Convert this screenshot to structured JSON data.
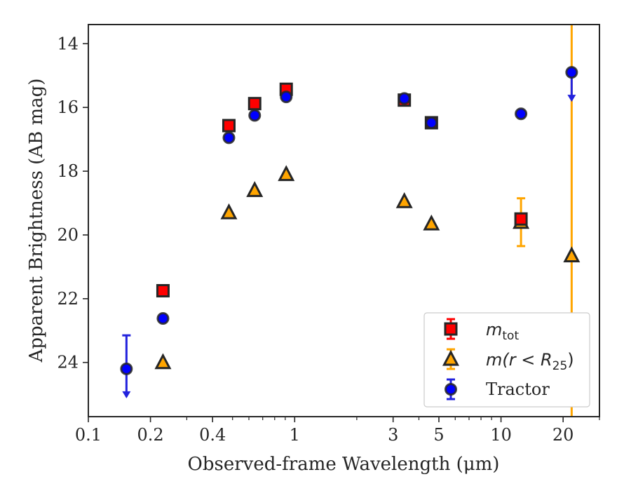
{
  "chart_data": {
    "type": "scatter",
    "xscale": "log",
    "xlim": [
      0.1,
      30
    ],
    "ylim": [
      25.7,
      13.4
    ],
    "y_inverted": true,
    "grid": false,
    "xlabel": "Observed-frame Wavelength (μm)",
    "ylabel": "Apparent Brightness (AB mag)",
    "xticks": [
      {
        "value": 0.1,
        "label": "0.1"
      },
      {
        "value": 0.2,
        "label": "0.2"
      },
      {
        "value": 0.4,
        "label": "0.4"
      },
      {
        "value": 1,
        "label": "1"
      },
      {
        "value": 3,
        "label": "3"
      },
      {
        "value": 5,
        "label": "5"
      },
      {
        "value": 10,
        "label": "10"
      },
      {
        "value": 20,
        "label": "20"
      }
    ],
    "yticks": [
      {
        "value": 14,
        "label": "14"
      },
      {
        "value": 16,
        "label": "16"
      },
      {
        "value": 18,
        "label": "18"
      },
      {
        "value": 20,
        "label": "20"
      },
      {
        "value": 22,
        "label": "22"
      },
      {
        "value": 24,
        "label": "24"
      }
    ],
    "legend_position": "lower-right",
    "series": [
      {
        "name": "m_tot",
        "marker": "square",
        "face_color": "#ff0000",
        "edge_color": "#262626",
        "err_color": "#ff0000",
        "points": [
          {
            "x": 0.23,
            "y": 21.75
          },
          {
            "x": 0.48,
            "y": 16.57
          },
          {
            "x": 0.64,
            "y": 15.88
          },
          {
            "x": 0.91,
            "y": 15.43
          },
          {
            "x": 3.4,
            "y": 15.77
          },
          {
            "x": 4.6,
            "y": 16.48
          },
          {
            "x": 12.5,
            "y": 19.5
          }
        ]
      },
      {
        "name": "m(r < R25)",
        "marker": "triangle",
        "face_color": "#ffa500",
        "edge_color": "#262626",
        "err_color": "#ffa500",
        "points": [
          {
            "x": 0.23,
            "y": 24.0
          },
          {
            "x": 0.48,
            "y": 19.3
          },
          {
            "x": 0.64,
            "y": 18.6
          },
          {
            "x": 0.91,
            "y": 18.1
          },
          {
            "x": 3.4,
            "y": 18.95
          },
          {
            "x": 4.6,
            "y": 19.65
          },
          {
            "x": 12.5,
            "y": 19.6,
            "err": [
              18.85,
              20.35
            ]
          },
          {
            "x": 22,
            "y": 20.65,
            "err": [
              13.4,
              25.7
            ]
          }
        ]
      },
      {
        "name": "Tractor",
        "marker": "circle",
        "face_color": "#0000ff",
        "edge_color": "#262626",
        "err_color": "#2222dd",
        "points": [
          {
            "x": 0.153,
            "y": 24.2,
            "upper_limit": true,
            "err": [
              23.15,
              24.2
            ]
          },
          {
            "x": 0.23,
            "y": 22.62
          },
          {
            "x": 0.48,
            "y": 16.95
          },
          {
            "x": 0.64,
            "y": 16.25
          },
          {
            "x": 0.91,
            "y": 15.67
          },
          {
            "x": 3.4,
            "y": 15.72
          },
          {
            "x": 4.6,
            "y": 16.48
          },
          {
            "x": 12.5,
            "y": 16.2
          },
          {
            "x": 22,
            "y": 14.9,
            "upper_limit": true
          }
        ]
      }
    ]
  },
  "legend": {
    "items": [
      {
        "main": "m",
        "sub": "tot"
      },
      {
        "prefix": "m(r < R",
        "sub": "25",
        "suffix": ")"
      },
      {
        "label": "Tractor"
      }
    ]
  }
}
